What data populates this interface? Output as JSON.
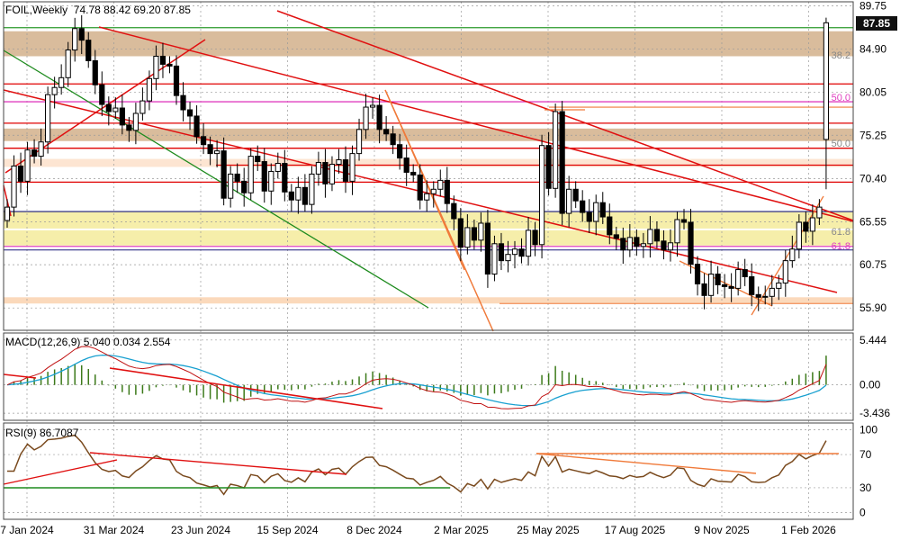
{
  "header": {
    "symbol_line": "FOIL,Weekly  74.78 88.42 69.20 87.85",
    "macd_line": "MACD(12,26,9) 5.040 0.034 2.554",
    "rsi_line": "RSI(9) 86.7087",
    "last_price": "87.85"
  },
  "chart_data": [
    {
      "type": "candlestick",
      "symbol": "FOIL",
      "timeframe": "Weekly",
      "ohlc_current": {
        "open": 74.78,
        "high": 88.42,
        "low": 69.2,
        "close": 87.85
      },
      "x_tick_labels": [
        "7 Jan 2024",
        "31 Mar 2024",
        "23 Jun 2024",
        "15 Sep 2024",
        "8 Dec 2024",
        "2 Mar 2025",
        "25 May 2025",
        "17 Aug 2025",
        "9 Nov 2025",
        "1 Feb 2026"
      ],
      "y_tick_labels": [
        "89.75",
        "84.90",
        "80.05",
        "75.25",
        "70.40",
        "65.55",
        "60.75",
        "55.90"
      ],
      "y_ticks": [
        89.75,
        84.9,
        80.05,
        75.25,
        70.4,
        65.55,
        60.75,
        55.9
      ],
      "ylim": [
        53.4,
        90.2
      ],
      "closes": [
        67.2,
        71.8,
        70.1,
        73.6,
        72.9,
        74.5,
        79.8,
        80.6,
        81.7,
        84.8,
        87.2,
        85.9,
        83.6,
        80.9,
        78.7,
        77.9,
        78.3,
        76.4,
        75.8,
        77.7,
        79.1,
        81.6,
        84.1,
        83.2,
        83.0,
        79.7,
        78.1,
        77.4,
        75.1,
        74.2,
        73.2,
        73.5,
        68.2,
        70.9,
        70.1,
        68.8,
        72.9,
        72.3,
        69.0,
        71.2,
        72.1,
        68.9,
        68.0,
        69.4,
        67.5,
        70.9,
        72.2,
        69.8,
        72.0,
        72.5,
        70.1,
        73.2,
        75.9,
        78.4,
        78.6,
        75.9,
        75.4,
        74.2,
        72.7,
        71.1,
        70.8,
        68.0,
        68.7,
        69.2,
        70.2,
        67.6,
        65.9,
        62.7,
        64.9,
        63.5,
        65.4,
        59.7,
        63.1,
        61.2,
        61.9,
        62.5,
        61.7,
        64.6,
        63.0,
        74.1,
        69.3,
        77.9,
        66.5,
        69.2,
        67.9,
        66.6,
        65.6,
        67.7,
        66.1,
        64.1,
        63.7,
        62.4,
        63.8,
        62.8,
        63.1,
        64.7,
        63.4,
        62.4,
        63.2,
        65.8,
        65.5,
        60.8,
        58.6,
        57.3,
        59.7,
        58.5,
        58.3,
        58.1,
        60.2,
        59.4,
        57.4,
        57.1,
        57.2,
        58.1,
        58.7,
        61.2,
        62.5,
        65.5,
        64.5,
        66.0,
        67.2,
        87.85
      ],
      "annotations": [
        "38.2",
        "50.0",
        "50.0",
        "61.8",
        "61.8"
      ]
    },
    {
      "type": "line",
      "title": "MACD(12,26,9) 5.040 0.034 2.554",
      "y_tick_labels": [
        "5.444",
        "0.00",
        "-3.436"
      ],
      "y_ticks": [
        5.444,
        0.0,
        -3.436
      ],
      "ylim": [
        -4.3,
        6.3
      ],
      "series": [
        {
          "name": "MACD",
          "color": "#c01010"
        },
        {
          "name": "Signal",
          "color": "#18a0d0"
        },
        {
          "name": "Histogram",
          "color": "#3c7a1a"
        }
      ]
    },
    {
      "type": "line",
      "title": "RSI(9) 86.7087",
      "y_tick_labels": [
        "100",
        "70",
        "30",
        "0"
      ],
      "y_ticks": [
        100,
        70,
        30,
        0
      ],
      "ylim": [
        -8,
        108
      ],
      "series": [
        {
          "name": "RSI",
          "color": "#7a4a1e"
        }
      ]
    }
  ],
  "colors": {
    "bullish_candle": "#ffffff",
    "bearish_candle": "#000000",
    "resistance_line": "#e00000",
    "trend_line": "#e01010",
    "green_trend": "#1e8b1e",
    "orange_line": "#f07a3a",
    "fib_magenta": "#e040c0",
    "navy_line": "#1a1a7a",
    "tan_zone": "#d9bc9c",
    "yellow_zone": "#f6eeaa",
    "peach_zone": "#fbd9bb",
    "grid": "#9a9a9a"
  }
}
